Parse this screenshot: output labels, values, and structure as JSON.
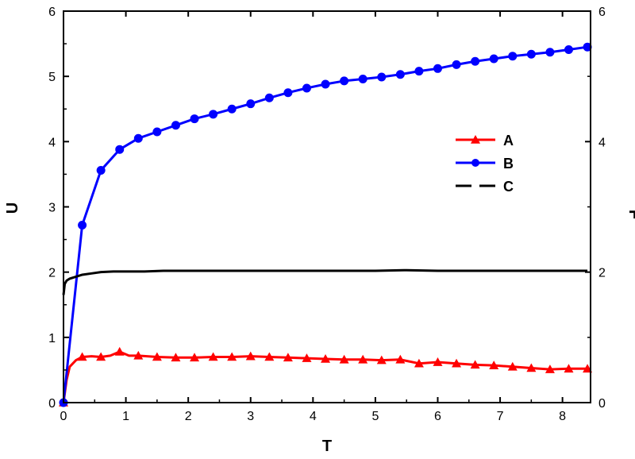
{
  "chart_data": {
    "type": "line",
    "xlabel": "T",
    "ylabel": "U",
    "y2label": "F",
    "xlim": [
      0,
      8.45
    ],
    "ylim": [
      0,
      6
    ],
    "y2lim": [
      0,
      6
    ],
    "x_ticks": [
      "0",
      "1",
      "2",
      "3",
      "4",
      "5",
      "6",
      "7",
      "8"
    ],
    "y_ticks": [
      "0",
      "1",
      "2",
      "3",
      "4",
      "5",
      "6"
    ],
    "y2_ticks": [
      "0",
      "2",
      "4",
      "6"
    ],
    "grid": false,
    "legend_position": "right-center",
    "series": [
      {
        "name": "A",
        "color": "#ff0000",
        "marker": "triangle",
        "x": [
          0,
          0.05,
          0.1,
          0.2,
          0.3,
          0.45,
          0.6,
          0.75,
          0.9,
          1.05,
          1.2,
          1.5,
          1.8,
          2.1,
          2.4,
          2.7,
          3.0,
          3.3,
          3.6,
          3.9,
          4.2,
          4.5,
          4.8,
          5.1,
          5.4,
          5.7,
          6.0,
          6.3,
          6.6,
          6.9,
          7.2,
          7.5,
          7.8,
          8.1,
          8.4
        ],
        "values": [
          0.0,
          0.35,
          0.55,
          0.65,
          0.7,
          0.71,
          0.7,
          0.72,
          0.78,
          0.72,
          0.72,
          0.7,
          0.69,
          0.69,
          0.7,
          0.7,
          0.71,
          0.7,
          0.69,
          0.68,
          0.67,
          0.66,
          0.66,
          0.65,
          0.66,
          0.6,
          0.62,
          0.6,
          0.58,
          0.57,
          0.55,
          0.53,
          0.51,
          0.52,
          0.52
        ],
        "marker_x": [
          0,
          0.3,
          0.6,
          0.9,
          1.2,
          1.5,
          1.8,
          2.1,
          2.4,
          2.7,
          3.0,
          3.3,
          3.6,
          3.9,
          4.2,
          4.5,
          4.8,
          5.1,
          5.4,
          5.7,
          6.0,
          6.3,
          6.6,
          6.9,
          7.2,
          7.5,
          7.8,
          8.1,
          8.4
        ]
      },
      {
        "name": "B",
        "color": "#0000ff",
        "marker": "circle",
        "x": [
          0,
          0.3,
          0.6,
          0.9,
          1.2,
          1.5,
          1.8,
          2.1,
          2.4,
          2.7,
          3.0,
          3.3,
          3.6,
          3.9,
          4.2,
          4.5,
          4.8,
          5.1,
          5.4,
          5.7,
          6.0,
          6.3,
          6.6,
          6.9,
          7.2,
          7.5,
          7.8,
          8.1,
          8.4
        ],
        "values": [
          0.0,
          2.72,
          3.56,
          3.88,
          4.05,
          4.15,
          4.25,
          4.35,
          4.42,
          4.5,
          4.58,
          4.67,
          4.75,
          4.82,
          4.88,
          4.93,
          4.96,
          4.99,
          5.03,
          5.08,
          5.12,
          5.18,
          5.23,
          5.27,
          5.31,
          5.34,
          5.37,
          5.41,
          5.45
        ],
        "marker_x": [
          0,
          0.3,
          0.6,
          0.9,
          1.2,
          1.5,
          1.8,
          2.1,
          2.4,
          2.7,
          3.0,
          3.3,
          3.6,
          3.9,
          4.2,
          4.5,
          4.8,
          5.1,
          5.4,
          5.7,
          6.0,
          6.3,
          6.6,
          6.9,
          7.2,
          7.5,
          7.8,
          8.1,
          8.4
        ]
      },
      {
        "name": "C",
        "color": "#000000",
        "marker": "none",
        "x": [
          0,
          0.02,
          0.05,
          0.1,
          0.2,
          0.3,
          0.45,
          0.6,
          0.8,
          1.0,
          1.3,
          1.6,
          2.0,
          2.5,
          3.0,
          3.5,
          4.0,
          4.5,
          5.0,
          5.5,
          6.0,
          6.5,
          7.0,
          7.5,
          8.0,
          8.4
        ],
        "values": [
          1.65,
          1.82,
          1.87,
          1.9,
          1.93,
          1.96,
          1.98,
          2.0,
          2.01,
          2.01,
          2.01,
          2.02,
          2.02,
          2.02,
          2.02,
          2.02,
          2.02,
          2.02,
          2.02,
          2.03,
          2.02,
          2.02,
          2.02,
          2.02,
          2.02,
          2.02
        ]
      }
    ]
  }
}
